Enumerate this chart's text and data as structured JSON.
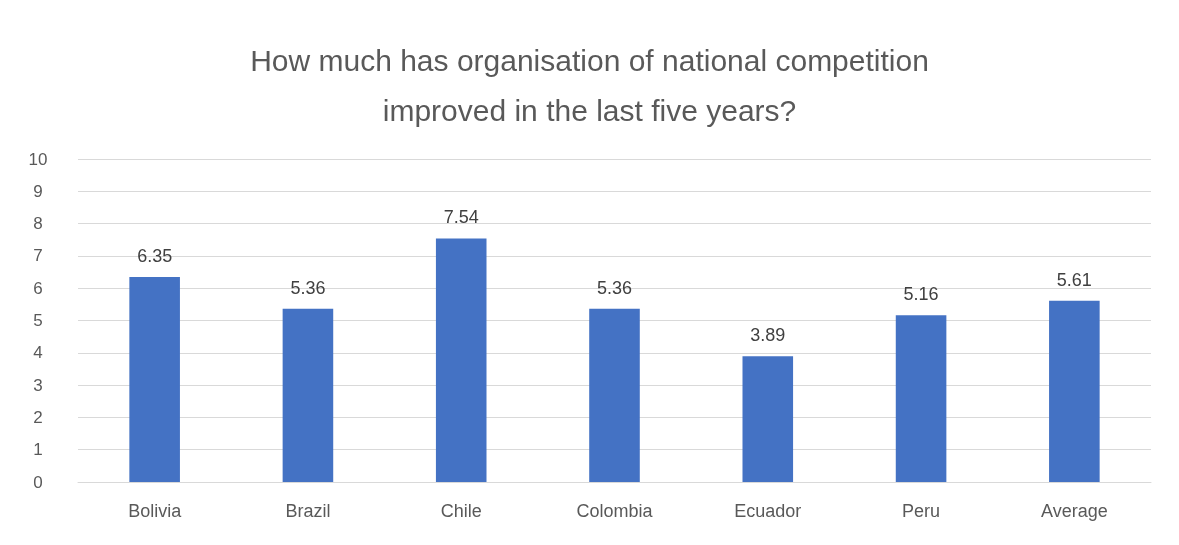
{
  "chart_data": {
    "type": "bar",
    "title": "How much has organisation of national competition\nimproved in the last five years?",
    "categories": [
      "Bolivia",
      "Brazil",
      "Chile",
      "Colombia",
      "Ecuador",
      "Peru",
      "Average"
    ],
    "values": [
      6.35,
      5.36,
      7.54,
      5.36,
      3.89,
      5.16,
      5.61
    ],
    "color": "#4472c4",
    "ylim": [
      0,
      10
    ],
    "yticks": [
      0,
      1,
      2,
      3,
      4,
      5,
      6,
      7,
      8,
      9,
      10
    ],
    "grid": "y",
    "data_labels": true
  }
}
